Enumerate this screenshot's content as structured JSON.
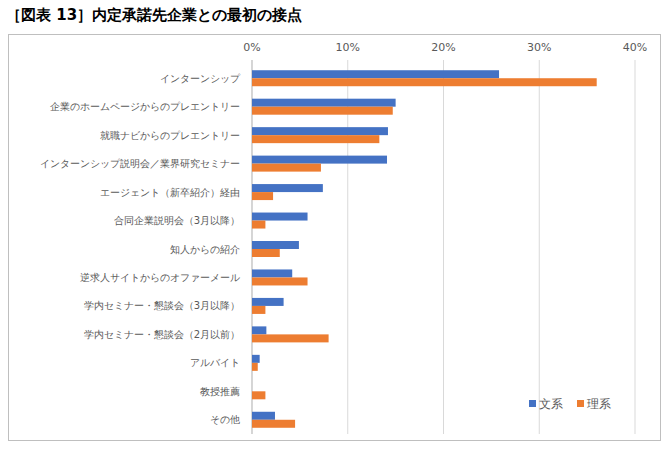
{
  "chart_data": {
    "type": "bar",
    "orientation": "horizontal",
    "title": "［図表 13］内定承諾先企業との最初の接点",
    "categories": [
      "インターンシップ",
      "企業のホームページからのプレエントリー",
      "就職ナビからのプレエントリー",
      "インターンシップ説明会／業界研究セミナー",
      "エージェント（新卒紹介）経由",
      "合同企業説明会（3月以降）",
      "知人からの紹介",
      "逆求人サイトからのオファーメール",
      "学内セミナー・懇談会（3月以降）",
      "学内セミナー・懇談会（2月以前）",
      "アルバイト",
      "教授推薦",
      "その他"
    ],
    "series": [
      {
        "name": "文系",
        "color": "#4472c4",
        "values": [
          25.8,
          15.0,
          14.2,
          14.1,
          7.4,
          5.8,
          4.9,
          4.2,
          3.3,
          1.5,
          0.8,
          0,
          2.4
        ]
      },
      {
        "name": "理系",
        "color": "#ed7d31",
        "values": [
          36.0,
          14.7,
          13.3,
          7.2,
          2.2,
          1.4,
          2.9,
          5.8,
          1.4,
          8.0,
          0.6,
          1.4,
          4.5
        ]
      }
    ],
    "xlim": [
      0,
      40
    ],
    "xticks": [
      {
        "value": 0,
        "label": "0%"
      },
      {
        "value": 10,
        "label": "10%"
      },
      {
        "value": 20,
        "label": "20%"
      },
      {
        "value": 30,
        "label": "30%"
      },
      {
        "value": 40,
        "label": "40%"
      }
    ],
    "grid": true,
    "legend": "lower right"
  }
}
